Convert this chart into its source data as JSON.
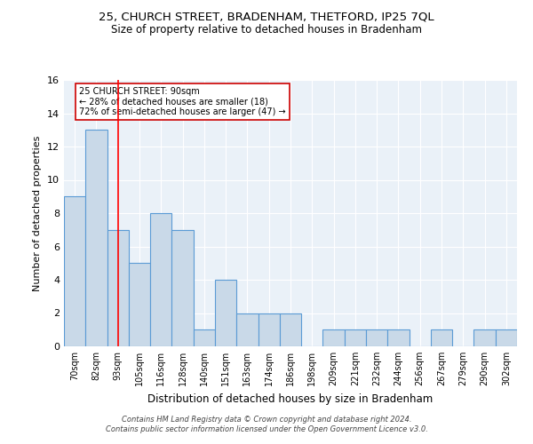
{
  "title": "25, CHURCH STREET, BRADENHAM, THETFORD, IP25 7QL",
  "subtitle": "Size of property relative to detached houses in Bradenham",
  "xlabel": "Distribution of detached houses by size in Bradenham",
  "ylabel": "Number of detached properties",
  "categories": [
    "70sqm",
    "82sqm",
    "93sqm",
    "105sqm",
    "116sqm",
    "128sqm",
    "140sqm",
    "151sqm",
    "163sqm",
    "174sqm",
    "186sqm",
    "198sqm",
    "209sqm",
    "221sqm",
    "232sqm",
    "244sqm",
    "256sqm",
    "267sqm",
    "279sqm",
    "290sqm",
    "302sqm"
  ],
  "values": [
    9,
    13,
    7,
    5,
    8,
    7,
    1,
    4,
    2,
    2,
    2,
    0,
    1,
    1,
    1,
    1,
    0,
    1,
    0,
    1,
    1
  ],
  "bar_color": "#c9d9e8",
  "bar_edge_color": "#5b9bd5",
  "background_color": "#eaf1f8",
  "grid_color": "#ffffff",
  "red_line_index": 2,
  "annotation_box_text": "25 CHURCH STREET: 90sqm\n← 28% of detached houses are smaller (18)\n72% of semi-detached houses are larger (47) →",
  "annotation_box_color": "#ffffff",
  "annotation_box_edge_color": "#cc0000",
  "footnote": "Contains HM Land Registry data © Crown copyright and database right 2024.\nContains public sector information licensed under the Open Government Licence v3.0.",
  "ylim": [
    0,
    16
  ],
  "yticks": [
    0,
    2,
    4,
    6,
    8,
    10,
    12,
    14,
    16
  ]
}
